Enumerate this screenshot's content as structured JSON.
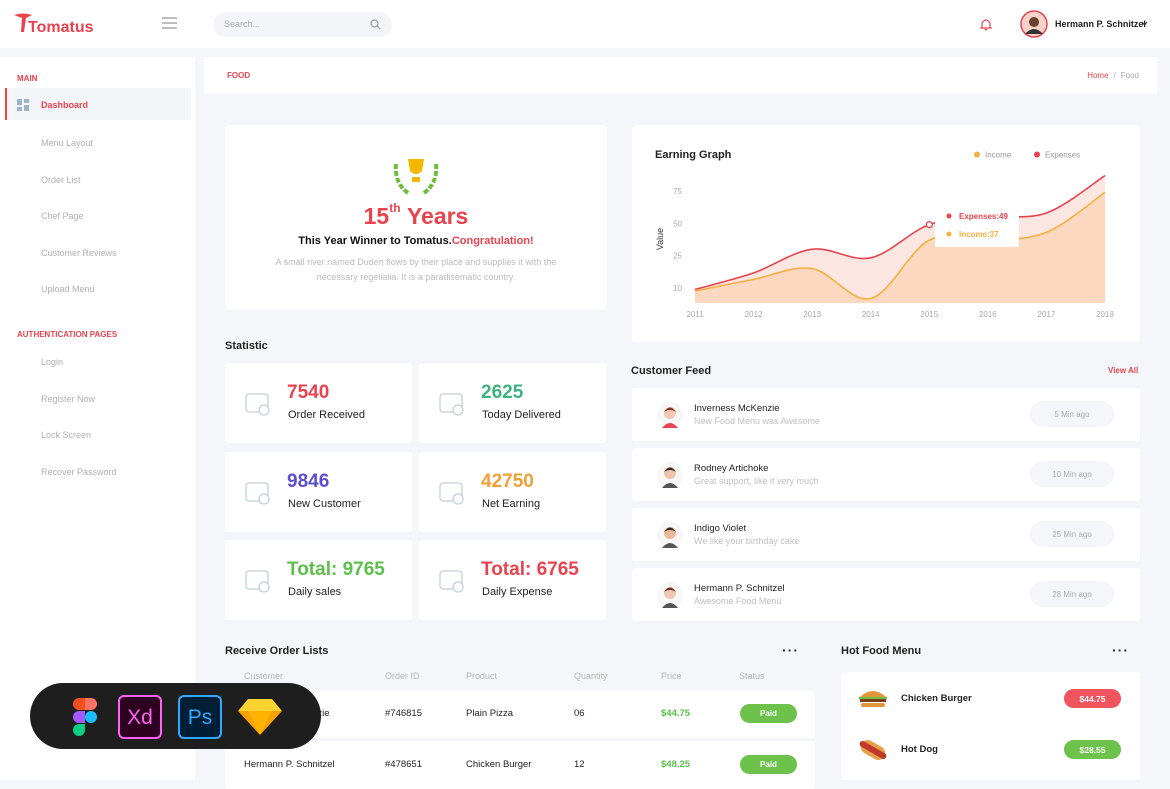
{
  "header": {
    "brand": "Tomatus",
    "search_placeholder": "Search...",
    "user_name": "Hermann P. Schnitzel"
  },
  "sidebar": {
    "sections": [
      {
        "title": "MAIN",
        "items": [
          "Dashboard",
          "Menu Layout",
          "Order List",
          "Chef Page",
          "Customer Reviews",
          "Upload Menu"
        ]
      },
      {
        "title": "AUTHENTICATION PAGES",
        "items": [
          "Login",
          "Register Now",
          "Lock Screen",
          "Recover Password"
        ]
      }
    ]
  },
  "breadcrumb": {
    "page": "FOOD",
    "links": [
      "Home",
      "Food"
    ],
    "separator": "/"
  },
  "award": {
    "count": 15,
    "suffix": "th",
    "word": "Years",
    "headline": "This Year Winner to Tomatus.",
    "highlight": "Congratulation!",
    "text": "A small river named Duden flows by their place and supplies it with the necessary regelialia. It is a paradisematic country."
  },
  "statistic": {
    "title": "Statistic",
    "cards": [
      {
        "value": 7540,
        "label": "Order Received",
        "color": "#e8434f"
      },
      {
        "value": 2625,
        "label": "Today Delivered",
        "color": "#3fb37f"
      },
      {
        "value": 9846,
        "label": "New Customer",
        "color": "#5b4fcf"
      },
      {
        "value": 42750,
        "label": "Net Earning",
        "color": "#f0a035"
      },
      {
        "value": "Total: 9765",
        "label": "Daily sales",
        "color": "#5cbf4a"
      },
      {
        "value": "Total: 6765",
        "label": "Daily Expense",
        "color": "#e8434f"
      }
    ]
  },
  "chart_data": {
    "type": "line",
    "title": "Earning Graph",
    "y_label": "Value",
    "x": [
      2011,
      2012,
      2013,
      2014,
      2015,
      2016,
      2017,
      2018
    ],
    "xlim": [
      2011,
      2018
    ],
    "xticks": [
      2011,
      2012,
      2013,
      2014,
      2015,
      2016,
      2017,
      2018
    ],
    "ylim": [
      0,
      90
    ],
    "yticks": [
      10,
      25,
      50,
      75
    ],
    "series": [
      {
        "name": "Income",
        "color": "#f5b041",
        "values": [
          8,
          14,
          19,
          3,
          37,
          37,
          43,
          74
        ]
      },
      {
        "name": "Expenses",
        "color": "#e8434f",
        "values": [
          9,
          17,
          30,
          24,
          49,
          55,
          58,
          86
        ]
      }
    ],
    "annotations": [
      "Expenses:49",
      "Income:37"
    ]
  },
  "customer_feed": {
    "title": "Customer Feed",
    "action": "View All",
    "items": [
      {
        "name": "Inverness McKenzie",
        "message": "New Food Menu was Awesome",
        "time": "5 Min ago"
      },
      {
        "name": "Rodney Artichoke",
        "message": "Great support, like it very much",
        "time": "10 Min ago"
      },
      {
        "name": "Indigo Violet",
        "message": "We like your birthday cake",
        "time": "25 Min ago"
      },
      {
        "name": "Hermann P. Schnitzel",
        "message": "Awesome Food Menu",
        "time": "28 Min ago"
      }
    ]
  },
  "orders": {
    "title": "Receive Order Lists",
    "more": "···",
    "columns": [
      "Customer",
      "Order ID",
      "Product",
      "Quantity",
      "Price",
      "Status"
    ],
    "rows": [
      [
        "Inverness McKenzie",
        "#746815",
        "Plain Pizza",
        "06",
        "$44.75",
        "Paid"
      ],
      [
        "Hermann P. Schnitzel",
        "#478651",
        "Chicken Burger",
        "12",
        "$48.25",
        "Paid"
      ]
    ]
  },
  "hot_food": {
    "title": "Hot Food Menu",
    "more": "···",
    "items": [
      {
        "name": "Chicken Burger",
        "price": "$44.75"
      },
      {
        "name": "Hot Dog",
        "price": "$28.55"
      }
    ]
  },
  "tools": [
    "Xd",
    "Ps"
  ]
}
